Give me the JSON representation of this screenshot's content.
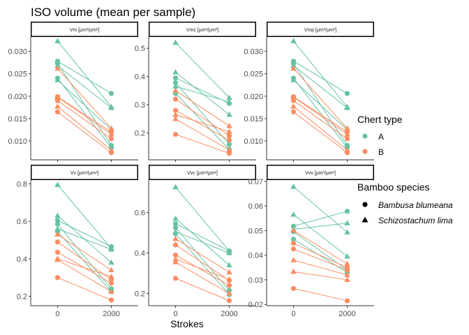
{
  "title": "ISO volume (mean per sample)",
  "xlabel": "Strokes",
  "colors": {
    "A": "#66c2a5",
    "B": "#fc8d62",
    "axis": "#333333",
    "text": "#4d4d4d"
  },
  "legend": {
    "chert_title": "Chert type",
    "chert_items": [
      {
        "label": "A",
        "color": "#66c2a5"
      },
      {
        "label": "B",
        "color": "#fc8d62"
      }
    ],
    "species_title": "Bamboo species",
    "species_items": [
      {
        "label": "Bambusa blumeana",
        "shape": "circle"
      },
      {
        "label": "Schizostachum lima",
        "shape": "triangle"
      }
    ]
  },
  "chart_data": [
    {
      "type": "line",
      "strip": "Vm [µm³/µm²]",
      "x_ticks": [
        0,
        2000
      ],
      "ylim": [
        0.0058,
        0.0332
      ],
      "y_ticks": [
        0.01,
        0.015,
        0.02,
        0.025,
        0.03
      ],
      "y_tick_labels": [
        "0.010",
        "0.015",
        "0.020",
        "0.025",
        "0.030"
      ],
      "series": [
        {
          "chert": "A",
          "species": "circle",
          "values": [
            0.0278,
            0.0206
          ]
        },
        {
          "chert": "A",
          "species": "circle",
          "values": [
            0.0273,
            0.009
          ]
        },
        {
          "chert": "A",
          "species": "circle",
          "values": [
            0.024,
            0.0085
          ]
        },
        {
          "chert": "A",
          "species": "triangle",
          "values": [
            0.0323,
            0.0176
          ]
        },
        {
          "chert": "A",
          "species": "triangle",
          "values": [
            0.0268,
            0.0174
          ]
        },
        {
          "chert": "A",
          "species": "triangle",
          "values": [
            0.0236,
            0.0125
          ]
        },
        {
          "chert": "B",
          "species": "circle",
          "values": [
            0.0199,
            0.012
          ]
        },
        {
          "chert": "B",
          "species": "circle",
          "values": [
            0.019,
            0.0105
          ]
        },
        {
          "chert": "B",
          "species": "circle",
          "values": [
            0.0165,
            0.0074
          ]
        },
        {
          "chert": "B",
          "species": "triangle",
          "values": [
            0.0262,
            0.0128
          ]
        },
        {
          "chert": "B",
          "species": "triangle",
          "values": [
            0.0198,
            0.0115
          ]
        },
        {
          "chert": "B",
          "species": "triangle",
          "values": [
            0.0177,
            0.008
          ]
        }
      ]
    },
    {
      "type": "line",
      "strip": "Vmc [µm³/µm²]",
      "x_ticks": [
        0,
        2000
      ],
      "ylim": [
        0.105,
        0.54
      ],
      "y_ticks": [
        0.2,
        0.3,
        0.4,
        0.5
      ],
      "y_tick_labels": [
        "0.2",
        "0.3",
        "0.4",
        "0.5"
      ],
      "series": [
        {
          "chert": "A",
          "species": "circle",
          "values": [
            0.395,
            0.305
          ]
        },
        {
          "chert": "A",
          "species": "circle",
          "values": [
            0.378,
            0.16
          ]
        },
        {
          "chert": "A",
          "species": "circle",
          "values": [
            0.34,
            0.142
          ]
        },
        {
          "chert": "A",
          "species": "triangle",
          "values": [
            0.52,
            0.325
          ]
        },
        {
          "chert": "A",
          "species": "triangle",
          "values": [
            0.415,
            0.265
          ]
        },
        {
          "chert": "A",
          "species": "triangle",
          "values": [
            0.365,
            0.31
          ]
        },
        {
          "chert": "B",
          "species": "circle",
          "values": [
            0.32,
            0.19
          ]
        },
        {
          "chert": "B",
          "species": "circle",
          "values": [
            0.28,
            0.175
          ]
        },
        {
          "chert": "B",
          "species": "circle",
          "values": [
            0.195,
            0.128
          ]
        },
        {
          "chert": "B",
          "species": "triangle",
          "values": [
            0.35,
            0.225
          ]
        },
        {
          "chert": "B",
          "species": "triangle",
          "values": [
            0.265,
            0.205
          ]
        },
        {
          "chert": "B",
          "species": "triangle",
          "values": [
            0.25,
            0.14
          ]
        }
      ]
    },
    {
      "type": "line",
      "strip": "Vmp [µm³/µm²]",
      "x_ticks": [
        0,
        2000
      ],
      "ylim": [
        0.0058,
        0.0332
      ],
      "y_ticks": [
        0.01,
        0.015,
        0.02,
        0.025,
        0.03
      ],
      "y_tick_labels": [
        "0.010",
        "0.015",
        "0.020",
        "0.025",
        "0.030"
      ],
      "series": [
        {
          "chert": "A",
          "species": "circle",
          "values": [
            0.0278,
            0.0206
          ]
        },
        {
          "chert": "A",
          "species": "circle",
          "values": [
            0.0273,
            0.009
          ]
        },
        {
          "chert": "A",
          "species": "circle",
          "values": [
            0.024,
            0.0085
          ]
        },
        {
          "chert": "A",
          "species": "triangle",
          "values": [
            0.0323,
            0.0176
          ]
        },
        {
          "chert": "A",
          "species": "triangle",
          "values": [
            0.0268,
            0.0174
          ]
        },
        {
          "chert": "A",
          "species": "triangle",
          "values": [
            0.0236,
            0.0125
          ]
        },
        {
          "chert": "B",
          "species": "circle",
          "values": [
            0.0199,
            0.012
          ]
        },
        {
          "chert": "B",
          "species": "circle",
          "values": [
            0.019,
            0.0105
          ]
        },
        {
          "chert": "B",
          "species": "circle",
          "values": [
            0.0165,
            0.0074
          ]
        },
        {
          "chert": "B",
          "species": "triangle",
          "values": [
            0.0262,
            0.0128
          ]
        },
        {
          "chert": "B",
          "species": "triangle",
          "values": [
            0.0198,
            0.0115
          ]
        },
        {
          "chert": "B",
          "species": "triangle",
          "values": [
            0.0177,
            0.008
          ]
        }
      ]
    },
    {
      "type": "line",
      "strip": "Vv [µm³/µm²]",
      "x_ticks": [
        0,
        2000
      ],
      "ylim": [
        0.15,
        0.82
      ],
      "y_ticks": [
        0.2,
        0.4,
        0.6,
        0.8
      ],
      "y_tick_labels": [
        "0.2",
        "0.4",
        "0.6",
        "0.8"
      ],
      "series": [
        {
          "chert": "A",
          "species": "circle",
          "values": [
            0.605,
            0.465
          ]
        },
        {
          "chert": "A",
          "species": "circle",
          "values": [
            0.585,
            0.24
          ]
        },
        {
          "chert": "A",
          "species": "circle",
          "values": [
            0.545,
            0.225
          ]
        },
        {
          "chert": "A",
          "species": "triangle",
          "values": [
            0.795,
            0.455
          ]
        },
        {
          "chert": "A",
          "species": "triangle",
          "values": [
            0.63,
            0.38
          ]
        },
        {
          "chert": "A",
          "species": "triangle",
          "values": [
            0.56,
            0.45
          ]
        },
        {
          "chert": "B",
          "species": "circle",
          "values": [
            0.49,
            0.29
          ]
        },
        {
          "chert": "B",
          "species": "circle",
          "values": [
            0.435,
            0.27
          ]
        },
        {
          "chert": "B",
          "species": "circle",
          "values": [
            0.3,
            0.18
          ]
        },
        {
          "chert": "B",
          "species": "triangle",
          "values": [
            0.53,
            0.34
          ]
        },
        {
          "chert": "B",
          "species": "triangle",
          "values": [
            0.4,
            0.305
          ]
        },
        {
          "chert": "B",
          "species": "triangle",
          "values": [
            0.395,
            0.225
          ]
        }
      ]
    },
    {
      "type": "line",
      "strip": "Vvc [µm³/µm²]",
      "x_ticks": [
        0,
        2000
      ],
      "ylim": [
        0.14,
        0.76
      ],
      "y_ticks": [
        0.2,
        0.4,
        0.6
      ],
      "y_tick_labels": [
        "0.2",
        "0.4",
        "0.6"
      ],
      "series": [
        {
          "chert": "A",
          "species": "circle",
          "values": [
            0.545,
            0.41
          ]
        },
        {
          "chert": "A",
          "species": "circle",
          "values": [
            0.525,
            0.215
          ]
        },
        {
          "chert": "A",
          "species": "circle",
          "values": [
            0.495,
            0.195
          ]
        },
        {
          "chert": "A",
          "species": "triangle",
          "values": [
            0.725,
            0.41
          ]
        },
        {
          "chert": "A",
          "species": "triangle",
          "values": [
            0.57,
            0.34
          ]
        },
        {
          "chert": "A",
          "species": "triangle",
          "values": [
            0.505,
            0.4
          ]
        },
        {
          "chert": "B",
          "species": "circle",
          "values": [
            0.44,
            0.265
          ]
        },
        {
          "chert": "B",
          "species": "circle",
          "values": [
            0.39,
            0.24
          ]
        },
        {
          "chert": "B",
          "species": "circle",
          "values": [
            0.275,
            0.165
          ]
        },
        {
          "chert": "B",
          "species": "triangle",
          "values": [
            0.47,
            0.305
          ]
        },
        {
          "chert": "B",
          "species": "triangle",
          "values": [
            0.37,
            0.27
          ]
        },
        {
          "chert": "B",
          "species": "triangle",
          "values": [
            0.355,
            0.2
          ]
        }
      ]
    },
    {
      "type": "line",
      "strip": "Vvv [µm³/µm²]",
      "x_ticks": [
        0,
        2000
      ],
      "ylim": [
        0.0195,
        0.0705
      ],
      "y_ticks": [
        0.02,
        0.03,
        0.04,
        0.05,
        0.06,
        0.07
      ],
      "y_tick_labels": [
        "0.02",
        "0.03",
        "0.04",
        "0.05",
        "0.06",
        "0.07"
      ],
      "series": [
        {
          "chert": "A",
          "species": "circle",
          "values": [
            0.0518,
            0.0578
          ]
        },
        {
          "chert": "A",
          "species": "circle",
          "values": [
            0.0495,
            0.034
          ]
        },
        {
          "chert": "A",
          "species": "circle",
          "values": [
            0.0465,
            0.033
          ]
        },
        {
          "chert": "A",
          "species": "triangle",
          "values": [
            0.0678,
            0.0493
          ]
        },
        {
          "chert": "A",
          "species": "triangle",
          "values": [
            0.0565,
            0.0395
          ]
        },
        {
          "chert": "A",
          "species": "triangle",
          "values": [
            0.0505,
            0.053
          ]
        },
        {
          "chert": "B",
          "species": "circle",
          "values": [
            0.0448,
            0.035
          ]
        },
        {
          "chert": "B",
          "species": "circle",
          "values": [
            0.0425,
            0.034
          ]
        },
        {
          "chert": "B",
          "species": "circle",
          "values": [
            0.0265,
            0.0215
          ]
        },
        {
          "chert": "B",
          "species": "triangle",
          "values": [
            0.05,
            0.0365
          ]
        },
        {
          "chert": "B",
          "species": "triangle",
          "values": [
            0.038,
            0.032
          ]
        },
        {
          "chert": "B",
          "species": "triangle",
          "values": [
            0.0333,
            0.03
          ]
        }
      ]
    }
  ]
}
